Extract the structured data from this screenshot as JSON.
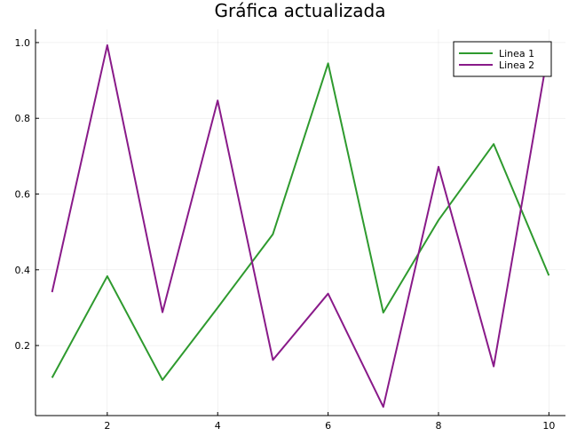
{
  "chart_data": {
    "type": "line",
    "title": "Gráfica actualizada",
    "xlabel": "",
    "ylabel": "",
    "xlim": [
      0.7,
      10.3
    ],
    "ylim": [
      0.015,
      1.035
    ],
    "xticks": [
      2,
      4,
      6,
      8,
      10
    ],
    "yticks": [
      0.2,
      0.4,
      0.6,
      0.8,
      1.0
    ],
    "ytick_labels": [
      "0.2",
      "0.4",
      "0.6",
      "0.8",
      "1.0"
    ],
    "grid": true,
    "legend_position": "top-right",
    "x": [
      1,
      2,
      3,
      4,
      5,
      6,
      7,
      8,
      9,
      10
    ],
    "series": [
      {
        "name": "Linea 1",
        "color": "#2e9a2e",
        "values": [
          0.115,
          0.383,
          0.109,
          0.3,
          0.494,
          0.945,
          0.287,
          0.531,
          0.732,
          0.385
        ]
      },
      {
        "name": "Linea 2",
        "color": "#891a89",
        "values": [
          0.341,
          0.993,
          0.288,
          0.847,
          0.162,
          0.337,
          0.038,
          0.672,
          0.145,
          0.988
        ]
      }
    ]
  }
}
